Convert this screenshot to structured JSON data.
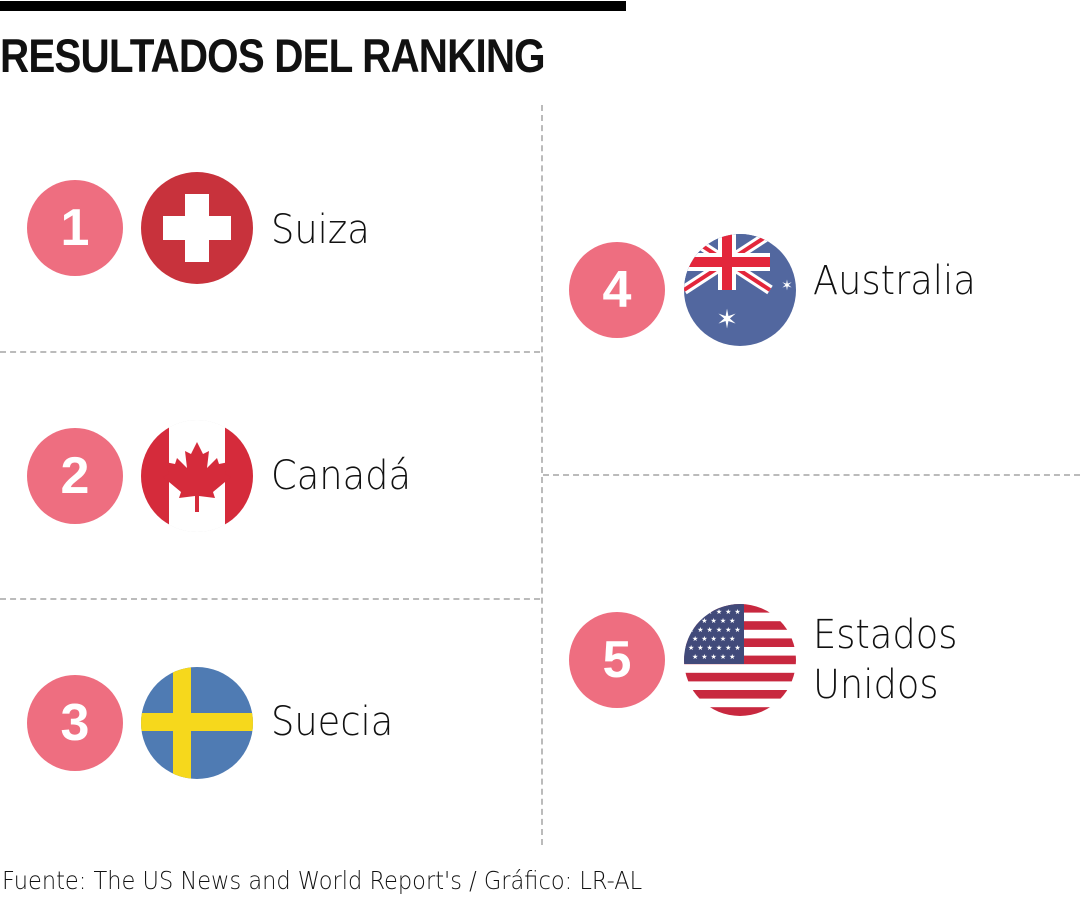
{
  "title": "RESULTADOS DEL RANKING",
  "colors": {
    "rank_circle": "#ee6e80"
  },
  "ranking": [
    {
      "rank": "1",
      "country": "Suiza",
      "flag_icon": "switzerland-flag-icon"
    },
    {
      "rank": "2",
      "country": "Canadá",
      "flag_icon": "canada-flag-icon"
    },
    {
      "rank": "3",
      "country": "Suecia",
      "flag_icon": "sweden-flag-icon"
    },
    {
      "rank": "4",
      "country": "Australia",
      "flag_icon": "australia-flag-icon"
    },
    {
      "rank": "5",
      "country_line1": "Estados",
      "country_line2": "Unidos",
      "flag_icon": "usa-flag-icon"
    }
  ],
  "footer": "Fuente: The US News and World Report's / Gráfico: LR-AL"
}
